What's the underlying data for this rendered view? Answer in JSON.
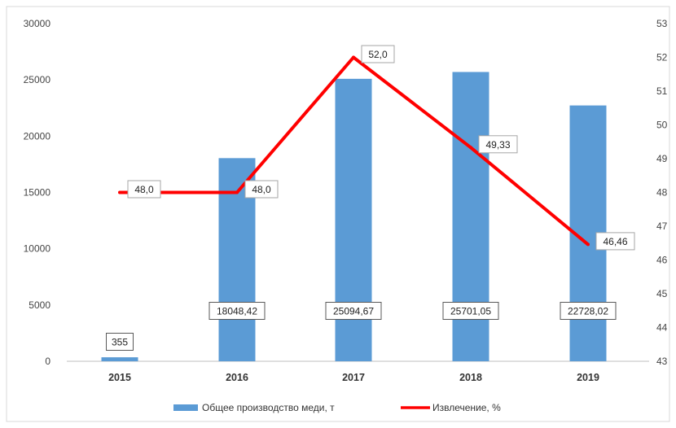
{
  "chart_data": {
    "type": "bar+line",
    "categories": [
      "2015",
      "2016",
      "2017",
      "2018",
      "2019"
    ],
    "series": [
      {
        "name": "Общее производство меди, т",
        "type": "bar",
        "axis": "left",
        "values": [
          355,
          18048.42,
          25094.67,
          25701.05,
          22728.02
        ],
        "labels": [
          "355",
          "18048,42",
          "25094,67",
          "25701,05",
          "22728,02"
        ],
        "color": "#5b9bd5"
      },
      {
        "name": "Извлечение, %",
        "type": "line",
        "axis": "right",
        "values": [
          48.0,
          48.0,
          52.0,
          49.33,
          46.46
        ],
        "labels": [
          "48,0",
          "48,0",
          "52,0",
          "49,33",
          "46,46"
        ],
        "color": "#ff0000"
      }
    ],
    "y_left": {
      "min": 0,
      "max": 30000,
      "ticks": [
        "0",
        "5000",
        "10000",
        "15000",
        "20000",
        "25000",
        "30000"
      ]
    },
    "y_right": {
      "min": 43,
      "max": 53,
      "ticks": [
        "43",
        "44",
        "45",
        "46",
        "47",
        "48",
        "49",
        "50",
        "51",
        "52",
        "53"
      ]
    },
    "grid": false,
    "legend": "bottom"
  }
}
